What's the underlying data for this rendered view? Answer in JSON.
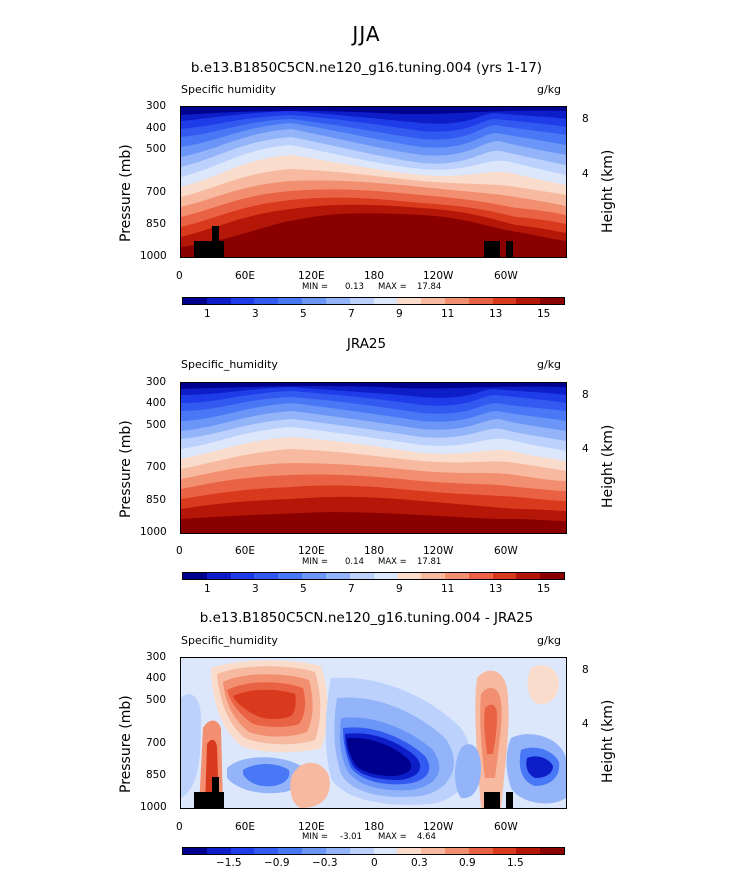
{
  "figure": {
    "season": "JJA"
  },
  "colors": {
    "abs": [
      "#00008f",
      "#0d1ec8",
      "#1e3ce8",
      "#3259f0",
      "#4878f5",
      "#6b96f7",
      "#94b4fa",
      "#bcd2fd",
      "#dde7fc",
      "#f9dccc",
      "#f7b9a0",
      "#f28f70",
      "#ea6244",
      "#d9391d",
      "#b41608",
      "#8a0000"
    ],
    "diff": [
      "#00008f",
      "#0d1ec8",
      "#1e3ce8",
      "#3259f0",
      "#4878f5",
      "#6b96f7",
      "#94b4fa",
      "#bcd2fd",
      "#dde7fc",
      "#f9dccc",
      "#f7b9a0",
      "#f28f70",
      "#ea6244",
      "#d9391d",
      "#b41608",
      "#8a0000"
    ],
    "land": "#000000"
  },
  "panels": [
    {
      "title": "b.e13.B1850C5CN.ne120_g16.tuning.004 (yrs 1-17)",
      "left_label": "Specific humidity",
      "right_label": "g/kg",
      "ylabel": "Pressure (mb)",
      "ylabel_right": "Height (km)",
      "yticks": [
        "300",
        "400",
        "500",
        "700",
        "850",
        "1000"
      ],
      "yticks_right": [
        "8",
        "4"
      ],
      "xticks": [
        "0",
        "60E",
        "120E",
        "180",
        "120W",
        "60W"
      ],
      "min_label": "MIN =",
      "min_value": "0.13",
      "max_label": "MAX =",
      "max_value": "17.84",
      "cbar_labels": [
        "1",
        "3",
        "5",
        "7",
        "9",
        "11",
        "13",
        "15"
      ]
    },
    {
      "title": "JRA25",
      "left_label": "Specific_humidity",
      "right_label": "g/kg",
      "ylabel": "Pressure (mb)",
      "ylabel_right": "Height (km)",
      "yticks": [
        "300",
        "400",
        "500",
        "700",
        "850",
        "1000"
      ],
      "yticks_right": [
        "8",
        "4"
      ],
      "xticks": [
        "0",
        "60E",
        "120E",
        "180",
        "120W",
        "60W"
      ],
      "min_label": "MIN =",
      "min_value": "0.14",
      "max_label": "MAX =",
      "max_value": "17.81",
      "cbar_labels": [
        "1",
        "3",
        "5",
        "7",
        "9",
        "11",
        "13",
        "15"
      ]
    },
    {
      "title": "b.e13.B1850C5CN.ne120_g16.tuning.004 - JRA25",
      "left_label": "Specific_humidity",
      "right_label": "g/kg",
      "ylabel": "Pressure (mb)",
      "ylabel_right": "Height (km)",
      "yticks": [
        "300",
        "400",
        "500",
        "700",
        "850",
        "1000"
      ],
      "yticks_right": [
        "8",
        "4"
      ],
      "xticks": [
        "0",
        "60E",
        "120E",
        "180",
        "120W",
        "60W"
      ],
      "min_label": "MIN =",
      "min_value": "-3.01",
      "max_label": "MAX =",
      "max_value": "4.64",
      "cbar_labels": [
        "−1.5",
        "−0.9",
        "−0.3",
        "0",
        "0.3",
        "0.9",
        "1.5"
      ]
    }
  ],
  "chart_data": [
    {
      "type": "heatmap",
      "title": "b.e13.B1850C5CN.ne120_g16.tuning.004 (yrs 1-17)",
      "variable": "Specific humidity",
      "units": "g/kg",
      "x_ticks": [
        "0",
        "60E",
        "120E",
        "180",
        "120W",
        "60W"
      ],
      "y_ticks_pressure_mb": [
        300,
        400,
        500,
        700,
        850,
        1000
      ],
      "y_ticks_height_km": [
        8,
        4
      ],
      "contour_levels": [
        1,
        2,
        3,
        4,
        5,
        6,
        7,
        8,
        9,
        10,
        11,
        12,
        13,
        14,
        15
      ],
      "min": 0.13,
      "max": 17.84
    },
    {
      "type": "heatmap",
      "title": "JRA25",
      "variable": "Specific_humidity",
      "units": "g/kg",
      "x_ticks": [
        "0",
        "60E",
        "120E",
        "180",
        "120W",
        "60W"
      ],
      "y_ticks_pressure_mb": [
        300,
        400,
        500,
        700,
        850,
        1000
      ],
      "y_ticks_height_km": [
        8,
        4
      ],
      "contour_levels": [
        1,
        2,
        3,
        4,
        5,
        6,
        7,
        8,
        9,
        10,
        11,
        12,
        13,
        14,
        15
      ],
      "min": 0.14,
      "max": 17.81
    },
    {
      "type": "heatmap",
      "title": "b.e13.B1850C5CN.ne120_g16.tuning.004 - JRA25",
      "variable": "Specific_humidity",
      "units": "g/kg",
      "x_ticks": [
        "0",
        "60E",
        "120E",
        "180",
        "120W",
        "60W"
      ],
      "y_ticks_pressure_mb": [
        300,
        400,
        500,
        700,
        850,
        1000
      ],
      "y_ticks_height_km": [
        8,
        4
      ],
      "contour_levels": [
        -2.1,
        -1.8,
        -1.5,
        -1.2,
        -0.9,
        -0.6,
        -0.3,
        0,
        0.3,
        0.6,
        0.9,
        1.2,
        1.5,
        1.8,
        2.1
      ],
      "min": -3.01,
      "max": 4.64
    }
  ]
}
